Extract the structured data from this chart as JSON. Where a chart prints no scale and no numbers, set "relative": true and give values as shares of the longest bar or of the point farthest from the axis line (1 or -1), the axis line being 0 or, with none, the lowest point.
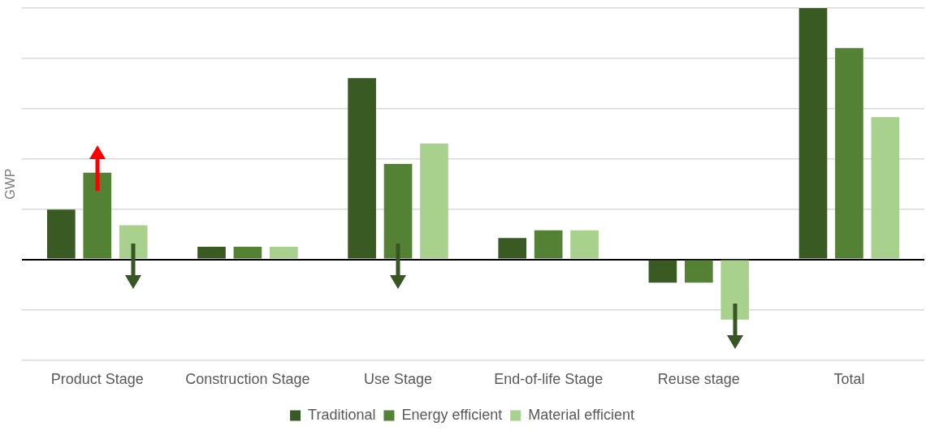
{
  "chart_data": {
    "type": "bar",
    "ylabel": "GWP",
    "relative": true,
    "grid": "y",
    "legend": "bottom",
    "categories": [
      "Product Stage",
      "Construction Stage",
      "Use Stage",
      "End-of-life Stage",
      "Reuse stage",
      "Total"
    ],
    "series": [
      {
        "name": "Traditional",
        "color": "#3a5a24",
        "values": [
          0.198,
          0.05,
          0.721,
          0.085,
          -0.093,
          1
        ]
      },
      {
        "name": "Energy efficient",
        "color": "#548235",
        "values": [
          0.345,
          0.05,
          0.38,
          0.116,
          -0.093,
          0.841
        ]
      },
      {
        "name": "Material efficient",
        "color": "#a9d18e",
        "values": [
          0.136,
          0.05,
          0.461,
          0.116,
          -0.24,
          0.566
        ]
      }
    ]
  }
}
